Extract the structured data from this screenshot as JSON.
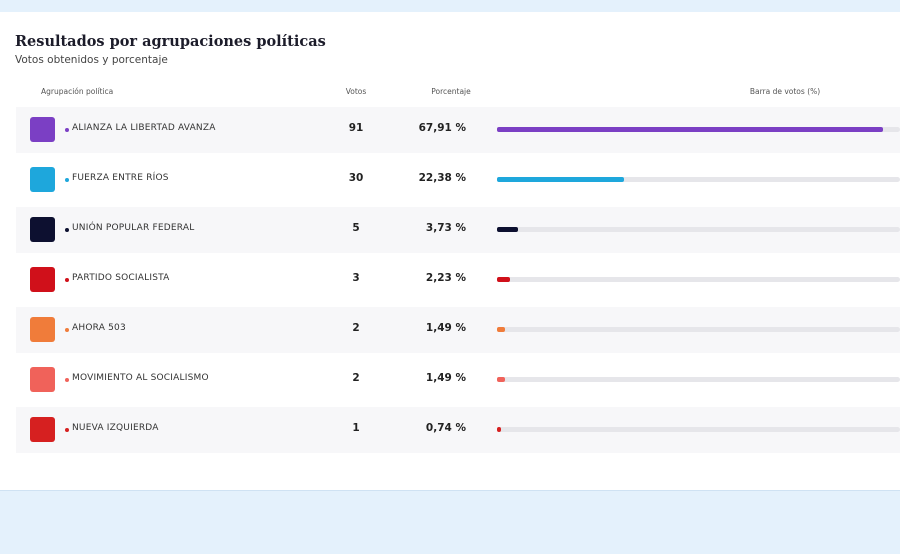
{
  "header": {
    "title": "Resultados por agrupaciones políticas",
    "subtitle": "Votos obtenidos y porcentaje"
  },
  "table": {
    "columns": [
      "Agrupación política",
      "Votos",
      "Porcentaje",
      "Barra de votos (%)"
    ],
    "xlim": [
      0,
      100
    ],
    "rows": [
      {
        "name": "ALIANZA LA LIBERTAD AVANZA",
        "votes": 91,
        "percent": 67.91,
        "percent_label": "67,91 %",
        "color": "#7b3fc4"
      },
      {
        "name": "FUERZA ENTRE RÍOS",
        "votes": 30,
        "percent": 22.38,
        "percent_label": "22,38 %",
        "color": "#1ea7dc"
      },
      {
        "name": "UNIÓN POPULAR FEDERAL",
        "votes": 5,
        "percent": 3.73,
        "percent_label": "3,73 %",
        "color": "#0d1030"
      },
      {
        "name": "PARTIDO SOCIALISTA",
        "votes": 3,
        "percent": 2.23,
        "percent_label": "2,23 %",
        "color": "#d0101a"
      },
      {
        "name": "AHORA 503",
        "votes": 2,
        "percent": 1.49,
        "percent_label": "1,49 %",
        "color": "#f07c3a"
      },
      {
        "name": "MOVIMIENTO AL SOCIALISMO",
        "votes": 2,
        "percent": 1.49,
        "percent_label": "1,49 %",
        "color": "#f0625a"
      },
      {
        "name": "NUEVA IZQUIERDA",
        "votes": 1,
        "percent": 0.74,
        "percent_label": "0,74 %",
        "color": "#d62020"
      }
    ]
  }
}
